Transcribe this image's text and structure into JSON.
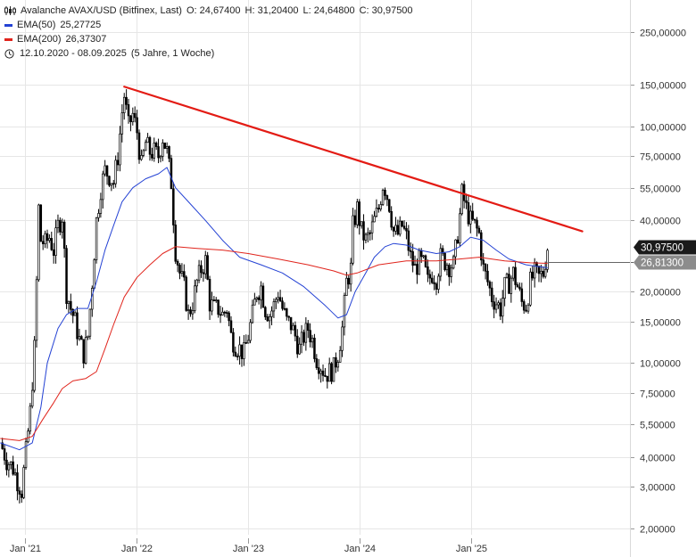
{
  "header": {
    "instrument": "Avalanche AVAX/USD (Bitfinex, Last)",
    "open": "O: 24,67400",
    "high": "H: 31,20400",
    "low": "L: 24,64800",
    "close": "C: 30,97500",
    "ema50_label": "EMA(50)",
    "ema50_value": "25,27725",
    "ema200_label": "EMA(200)",
    "ema200_value": "26,37307",
    "range": "12.10.2020 - 08.09.2025",
    "period": "(5 Jahre, 1 Woche)"
  },
  "colors": {
    "ema50": "#2442d4",
    "ema200": "#e0241c",
    "trendline": "#e31b14",
    "candle": "#000000",
    "tag_dark": "#1a1a1a",
    "tag_grey": "#8c8c8c",
    "grid": "#e6e6e6"
  },
  "icons": [
    "candles-icon",
    "clock-icon"
  ],
  "chart_data": {
    "type": "line",
    "subtype": "candlestick",
    "scale": "log",
    "ylim": [
      1.8,
      320
    ],
    "xlim": [
      "2020-10-12",
      "2025-12-31"
    ],
    "grid": true,
    "legend_position": "top-left",
    "y_ticks": [
      {
        "value": 2,
        "label": "2,00000"
      },
      {
        "value": 3,
        "label": "3,00000"
      },
      {
        "value": 4,
        "label": "4,00000"
      },
      {
        "value": 5.5,
        "label": "5,50000"
      },
      {
        "value": 7.5,
        "label": "7,50000"
      },
      {
        "value": 10,
        "label": "10,00000"
      },
      {
        "value": 15,
        "label": "15,00000"
      },
      {
        "value": 20,
        "label": "20,00000"
      },
      {
        "value": 40,
        "label": "40,00000"
      },
      {
        "value": 55,
        "label": "55,00000"
      },
      {
        "value": 75,
        "label": "75,00000"
      },
      {
        "value": 100,
        "label": "100,00000"
      },
      {
        "value": 150,
        "label": "150,00000"
      },
      {
        "value": 250,
        "label": "250,00000"
      }
    ],
    "x_ticks": [
      {
        "date": "2021-01-01",
        "label": "Jan '21"
      },
      {
        "date": "2022-01-01",
        "label": "Jan '22"
      },
      {
        "date": "2023-01-01",
        "label": "Jan '23"
      },
      {
        "date": "2024-01-01",
        "label": "Jan '24"
      },
      {
        "date": "2025-01-01",
        "label": "Jan '25"
      }
    ],
    "price_tags": [
      {
        "label": "30,97500",
        "value": 30.975,
        "style": "dark"
      },
      {
        "label": "26,81300",
        "value": 26.813,
        "style": "grey"
      }
    ],
    "trendline": {
      "from": {
        "date": "2021-11-22",
        "value": 147
      },
      "to": {
        "date": "2025-12-31",
        "value": 36
      }
    },
    "close_series": [
      {
        "date": "2020-10-12",
        "value": 4.6
      },
      {
        "date": "2020-11-02",
        "value": 3.9
      },
      {
        "date": "2020-11-23",
        "value": 3.6
      },
      {
        "date": "2020-12-07",
        "value": 3.2
      },
      {
        "date": "2020-12-21",
        "value": 2.9
      },
      {
        "date": "2021-01-04",
        "value": 4.2
      },
      {
        "date": "2021-01-18",
        "value": 6.2
      },
      {
        "date": "2021-02-01",
        "value": 11.5
      },
      {
        "date": "2021-02-08",
        "value": 22
      },
      {
        "date": "2021-02-15",
        "value": 45
      },
      {
        "date": "2021-02-22",
        "value": 33
      },
      {
        "date": "2021-03-08",
        "value": 32
      },
      {
        "date": "2021-03-22",
        "value": 34
      },
      {
        "date": "2021-04-05",
        "value": 30
      },
      {
        "date": "2021-04-19",
        "value": 38
      },
      {
        "date": "2021-05-03",
        "value": 42
      },
      {
        "date": "2021-05-17",
        "value": 20
      },
      {
        "date": "2021-05-31",
        "value": 17
      },
      {
        "date": "2021-06-14",
        "value": 15
      },
      {
        "date": "2021-06-28",
        "value": 12.5
      },
      {
        "date": "2021-07-12",
        "value": 11
      },
      {
        "date": "2021-07-26",
        "value": 13
      },
      {
        "date": "2021-08-09",
        "value": 22
      },
      {
        "date": "2021-08-23",
        "value": 40
      },
      {
        "date": "2021-09-06",
        "value": 55
      },
      {
        "date": "2021-09-20",
        "value": 65
      },
      {
        "date": "2021-10-04",
        "value": 62
      },
      {
        "date": "2021-10-18",
        "value": 58
      },
      {
        "date": "2021-11-01",
        "value": 75
      },
      {
        "date": "2021-11-15",
        "value": 115
      },
      {
        "date": "2021-11-22",
        "value": 135
      },
      {
        "date": "2021-12-06",
        "value": 100
      },
      {
        "date": "2021-12-20",
        "value": 112
      },
      {
        "date": "2022-01-03",
        "value": 95
      },
      {
        "date": "2022-01-17",
        "value": 68
      },
      {
        "date": "2022-01-31",
        "value": 85
      },
      {
        "date": "2022-02-14",
        "value": 78
      },
      {
        "date": "2022-02-28",
        "value": 78
      },
      {
        "date": "2022-03-14",
        "value": 75
      },
      {
        "date": "2022-03-28",
        "value": 90
      },
      {
        "date": "2022-04-11",
        "value": 78
      },
      {
        "date": "2022-04-25",
        "value": 58
      },
      {
        "date": "2022-05-09",
        "value": 30
      },
      {
        "date": "2022-05-23",
        "value": 24
      },
      {
        "date": "2022-06-06",
        "value": 21
      },
      {
        "date": "2022-06-20",
        "value": 16
      },
      {
        "date": "2022-07-04",
        "value": 18
      },
      {
        "date": "2022-07-18",
        "value": 22
      },
      {
        "date": "2022-08-01",
        "value": 25
      },
      {
        "date": "2022-08-15",
        "value": 27
      },
      {
        "date": "2022-08-29",
        "value": 18
      },
      {
        "date": "2022-09-12",
        "value": 17
      },
      {
        "date": "2022-09-26",
        "value": 17
      },
      {
        "date": "2022-10-10",
        "value": 16
      },
      {
        "date": "2022-10-24",
        "value": 17
      },
      {
        "date": "2022-11-07",
        "value": 13
      },
      {
        "date": "2022-11-21",
        "value": 12
      },
      {
        "date": "2022-12-05",
        "value": 11.5
      },
      {
        "date": "2022-12-19",
        "value": 11
      },
      {
        "date": "2023-01-02",
        "value": 13
      },
      {
        "date": "2023-01-16",
        "value": 16
      },
      {
        "date": "2023-01-30",
        "value": 20
      },
      {
        "date": "2023-02-13",
        "value": 21
      },
      {
        "date": "2023-02-27",
        "value": 17
      },
      {
        "date": "2023-03-13",
        "value": 16
      },
      {
        "date": "2023-03-27",
        "value": 17.5
      },
      {
        "date": "2023-04-10",
        "value": 20
      },
      {
        "date": "2023-04-24",
        "value": 17
      },
      {
        "date": "2023-05-08",
        "value": 15
      },
      {
        "date": "2023-05-22",
        "value": 14.5
      },
      {
        "date": "2023-06-05",
        "value": 13
      },
      {
        "date": "2023-06-19",
        "value": 11.5
      },
      {
        "date": "2023-07-03",
        "value": 13
      },
      {
        "date": "2023-07-17",
        "value": 14
      },
      {
        "date": "2023-07-31",
        "value": 12.5
      },
      {
        "date": "2023-08-14",
        "value": 10.5
      },
      {
        "date": "2023-08-28",
        "value": 9.8
      },
      {
        "date": "2023-09-11",
        "value": 9
      },
      {
        "date": "2023-09-25",
        "value": 9.2
      },
      {
        "date": "2023-10-09",
        "value": 9.5
      },
      {
        "date": "2023-10-23",
        "value": 11
      },
      {
        "date": "2023-11-06",
        "value": 14
      },
      {
        "date": "2023-11-20",
        "value": 22
      },
      {
        "date": "2023-12-04",
        "value": 25
      },
      {
        "date": "2023-12-11",
        "value": 38
      },
      {
        "date": "2023-12-25",
        "value": 45
      },
      {
        "date": "2024-01-08",
        "value": 36
      },
      {
        "date": "2024-01-22",
        "value": 33
      },
      {
        "date": "2024-02-05",
        "value": 35
      },
      {
        "date": "2024-02-19",
        "value": 40
      },
      {
        "date": "2024-03-04",
        "value": 45
      },
      {
        "date": "2024-03-18",
        "value": 57
      },
      {
        "date": "2024-03-25",
        "value": 55
      },
      {
        "date": "2024-04-08",
        "value": 47
      },
      {
        "date": "2024-04-22",
        "value": 36
      },
      {
        "date": "2024-05-06",
        "value": 35
      },
      {
        "date": "2024-05-20",
        "value": 38
      },
      {
        "date": "2024-06-03",
        "value": 34
      },
      {
        "date": "2024-06-17",
        "value": 28
      },
      {
        "date": "2024-07-01",
        "value": 25
      },
      {
        "date": "2024-07-15",
        "value": 27
      },
      {
        "date": "2024-07-29",
        "value": 26
      },
      {
        "date": "2024-08-12",
        "value": 22
      },
      {
        "date": "2024-08-26",
        "value": 24
      },
      {
        "date": "2024-09-09",
        "value": 23
      },
      {
        "date": "2024-09-23",
        "value": 28
      },
      {
        "date": "2024-10-07",
        "value": 27
      },
      {
        "date": "2024-10-21",
        "value": 26
      },
      {
        "date": "2024-11-04",
        "value": 26
      },
      {
        "date": "2024-11-11",
        "value": 30
      },
      {
        "date": "2024-11-25",
        "value": 42
      },
      {
        "date": "2024-12-02",
        "value": 52
      },
      {
        "date": "2024-12-16",
        "value": 45
      },
      {
        "date": "2024-12-30",
        "value": 40
      },
      {
        "date": "2025-01-13",
        "value": 38
      },
      {
        "date": "2025-01-27",
        "value": 35
      },
      {
        "date": "2025-02-10",
        "value": 25
      },
      {
        "date": "2025-02-24",
        "value": 22
      },
      {
        "date": "2025-03-10",
        "value": 19
      },
      {
        "date": "2025-03-24",
        "value": 18
      },
      {
        "date": "2025-04-07",
        "value": 17
      },
      {
        "date": "2025-04-21",
        "value": 21
      },
      {
        "date": "2025-05-05",
        "value": 22
      },
      {
        "date": "2025-05-19",
        "value": 24
      },
      {
        "date": "2025-06-02",
        "value": 21
      },
      {
        "date": "2025-06-16",
        "value": 18
      },
      {
        "date": "2025-06-30",
        "value": 17.5
      },
      {
        "date": "2025-07-14",
        "value": 22
      },
      {
        "date": "2025-07-28",
        "value": 24
      },
      {
        "date": "2025-08-11",
        "value": 23
      },
      {
        "date": "2025-08-25",
        "value": 24
      },
      {
        "date": "2025-09-08",
        "value": 30.975
      }
    ],
    "series": [
      {
        "name": "EMA(50)",
        "points": [
          {
            "date": "2020-10-12",
            "value": 4.6
          },
          {
            "date": "2020-12-14",
            "value": 4.3
          },
          {
            "date": "2021-01-25",
            "value": 4.6
          },
          {
            "date": "2021-02-22",
            "value": 6.5
          },
          {
            "date": "2021-03-15",
            "value": 10
          },
          {
            "date": "2021-04-19",
            "value": 14
          },
          {
            "date": "2021-05-17",
            "value": 16
          },
          {
            "date": "2021-06-21",
            "value": 17
          },
          {
            "date": "2021-07-26",
            "value": 17
          },
          {
            "date": "2021-08-23",
            "value": 22
          },
          {
            "date": "2021-09-20",
            "value": 30
          },
          {
            "date": "2021-10-18",
            "value": 38
          },
          {
            "date": "2021-11-15",
            "value": 48
          },
          {
            "date": "2021-12-20",
            "value": 55
          },
          {
            "date": "2022-01-31",
            "value": 60
          },
          {
            "date": "2022-03-14",
            "value": 63
          },
          {
            "date": "2022-04-11",
            "value": 67
          },
          {
            "date": "2022-05-09",
            "value": 55
          },
          {
            "date": "2022-06-20",
            "value": 48
          },
          {
            "date": "2022-08-15",
            "value": 40
          },
          {
            "date": "2022-10-10",
            "value": 33
          },
          {
            "date": "2022-12-05",
            "value": 28
          },
          {
            "date": "2023-02-13",
            "value": 26
          },
          {
            "date": "2023-04-24",
            "value": 24
          },
          {
            "date": "2023-07-03",
            "value": 21
          },
          {
            "date": "2023-09-11",
            "value": 17.5
          },
          {
            "date": "2023-10-23",
            "value": 15.5
          },
          {
            "date": "2023-11-20",
            "value": 16
          },
          {
            "date": "2023-12-18",
            "value": 20
          },
          {
            "date": "2024-01-22",
            "value": 24
          },
          {
            "date": "2024-02-19",
            "value": 28
          },
          {
            "date": "2024-03-25",
            "value": 31
          },
          {
            "date": "2024-04-22",
            "value": 32
          },
          {
            "date": "2024-06-03",
            "value": 31.5
          },
          {
            "date": "2024-07-15",
            "value": 30
          },
          {
            "date": "2024-09-09",
            "value": 29
          },
          {
            "date": "2024-10-21",
            "value": 29.5
          },
          {
            "date": "2024-11-25",
            "value": 31
          },
          {
            "date": "2024-12-30",
            "value": 34
          },
          {
            "date": "2025-02-10",
            "value": 33
          },
          {
            "date": "2025-03-24",
            "value": 30
          },
          {
            "date": "2025-05-05",
            "value": 27.5
          },
          {
            "date": "2025-06-30",
            "value": 26
          },
          {
            "date": "2025-08-11",
            "value": 25.5
          },
          {
            "date": "2025-09-08",
            "value": 25.27725
          }
        ]
      },
      {
        "name": "EMA(200)",
        "points": [
          {
            "date": "2020-10-12",
            "value": 4.8
          },
          {
            "date": "2020-12-14",
            "value": 4.7
          },
          {
            "date": "2021-01-25",
            "value": 4.9
          },
          {
            "date": "2021-03-01",
            "value": 5.8
          },
          {
            "date": "2021-04-05",
            "value": 6.8
          },
          {
            "date": "2021-05-03",
            "value": 7.8
          },
          {
            "date": "2021-06-07",
            "value": 8.4
          },
          {
            "date": "2021-07-19",
            "value": 8.6
          },
          {
            "date": "2021-08-23",
            "value": 9.2
          },
          {
            "date": "2021-09-20",
            "value": 11.5
          },
          {
            "date": "2021-10-18",
            "value": 14.5
          },
          {
            "date": "2021-11-22",
            "value": 19
          },
          {
            "date": "2022-01-03",
            "value": 23
          },
          {
            "date": "2022-02-14",
            "value": 26
          },
          {
            "date": "2022-03-28",
            "value": 29
          },
          {
            "date": "2022-05-09",
            "value": 31
          },
          {
            "date": "2022-07-18",
            "value": 30.5
          },
          {
            "date": "2022-10-10",
            "value": 30
          },
          {
            "date": "2023-01-02",
            "value": 29
          },
          {
            "date": "2023-04-10",
            "value": 27.5
          },
          {
            "date": "2023-07-17",
            "value": 26
          },
          {
            "date": "2023-10-09",
            "value": 24.5
          },
          {
            "date": "2023-11-20",
            "value": 23.5
          },
          {
            "date": "2023-12-25",
            "value": 24
          },
          {
            "date": "2024-03-04",
            "value": 26
          },
          {
            "date": "2024-06-03",
            "value": 27
          },
          {
            "date": "2024-09-09",
            "value": 27
          },
          {
            "date": "2024-11-25",
            "value": 27.5
          },
          {
            "date": "2025-01-27",
            "value": 28
          },
          {
            "date": "2025-04-21",
            "value": 27
          },
          {
            "date": "2025-07-14",
            "value": 26.5
          },
          {
            "date": "2025-09-08",
            "value": 26.37307
          }
        ]
      }
    ]
  }
}
